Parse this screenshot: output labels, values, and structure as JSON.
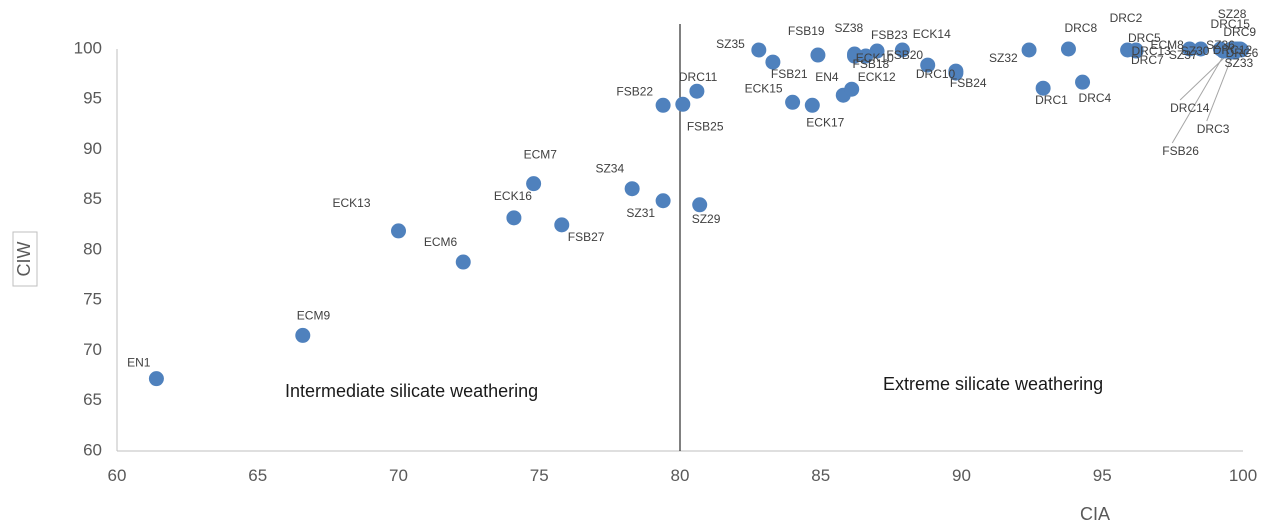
{
  "chart_data": {
    "type": "scatter",
    "xlabel": "CIA",
    "ylabel": "CIW",
    "xlim": [
      60,
      100
    ],
    "ylim": [
      60,
      100
    ],
    "xticks": [
      "60",
      "65",
      "70",
      "75",
      "80",
      "85",
      "90",
      "95",
      "100"
    ],
    "yticks": [
      "60",
      "65",
      "70",
      "75",
      "80",
      "85",
      "90",
      "95",
      "100"
    ],
    "grid": false,
    "legend": "none",
    "marker_color": "#4F81BD",
    "divider_x": 80,
    "regions": {
      "left": "Intermediate silicate weathering",
      "right": "Extreme silicate weathering"
    },
    "points": [
      {
        "label": "EN1",
        "x": 61.4,
        "y": 67.2
      },
      {
        "label": "ECM9",
        "x": 66.6,
        "y": 71.5
      },
      {
        "label": "ECK13",
        "x": 70.0,
        "y": 81.9
      },
      {
        "label": "ECM6",
        "x": 72.3,
        "y": 78.8
      },
      {
        "label": "ECK16",
        "x": 74.1,
        "y": 83.2
      },
      {
        "label": "ECM7",
        "x": 74.8,
        "y": 86.6
      },
      {
        "label": "FSB27",
        "x": 75.8,
        "y": 82.5
      },
      {
        "label": "SZ34",
        "x": 78.3,
        "y": 86.1
      },
      {
        "label": "SZ31",
        "x": 79.4,
        "y": 84.9
      },
      {
        "label": "FSB22",
        "x": 79.4,
        "y": 94.4
      },
      {
        "label": "FSB25",
        "x": 80.1,
        "y": 94.5
      },
      {
        "label": "DRC11",
        "x": 80.6,
        "y": 95.8
      },
      {
        "label": "SZ29",
        "x": 80.7,
        "y": 84.5
      },
      {
        "label": "SZ35",
        "x": 82.8,
        "y": 99.9
      },
      {
        "label": "FSB21",
        "x": 83.3,
        "y": 98.7
      },
      {
        "label": "ECK15",
        "x": 84.0,
        "y": 94.7
      },
      {
        "label": "ECK17",
        "x": 84.7,
        "y": 94.4
      },
      {
        "label": "FSB19",
        "x": 84.9,
        "y": 99.4
      },
      {
        "label": "EN4",
        "x": 85.8,
        "y": 95.4
      },
      {
        "label": "ECK12",
        "x": 86.1,
        "y": 96.0
      },
      {
        "label": "SZ38",
        "x": 86.2,
        "y": 99.5
      },
      {
        "label": "FSB18",
        "x": 86.2,
        "y": 99.3
      },
      {
        "label": "ECK10",
        "x": 86.6,
        "y": 99.3
      },
      {
        "label": "FSB23",
        "x": 87.0,
        "y": 99.8
      },
      {
        "label": "FSB20",
        "x": 87.9,
        "y": 99.9
      },
      {
        "label": "ECK14",
        "x": 88.8,
        "y": 98.4
      },
      {
        "label": "DRC10",
        "x": 89.8,
        "y": 97.8
      },
      {
        "label": "FSB24",
        "x": 89.8,
        "y": 97.6
      },
      {
        "label": "SZ32",
        "x": 92.4,
        "y": 99.9
      },
      {
        "label": "DRC1",
        "x": 92.9,
        "y": 96.1
      },
      {
        "label": "DRC8",
        "x": 93.8,
        "y": 100.0
      },
      {
        "label": "DRC4",
        "x": 94.3,
        "y": 96.7
      },
      {
        "label": "DRC2",
        "x": 95.9,
        "y": 99.9
      },
      {
        "label": "DRC5",
        "x": 96.2,
        "y": 99.9
      },
      {
        "label": "DRC7",
        "x": 96.2,
        "y": 99.8
      },
      {
        "label": "DRC13",
        "x": 98.1,
        "y": 100.0
      },
      {
        "label": "SZ30",
        "x": 98.5,
        "y": 100.0
      },
      {
        "label": "ECM8",
        "x": 99.2,
        "y": 100.0
      },
      {
        "label": "SZ28",
        "x": 99.6,
        "y": 100.0
      },
      {
        "label": "DRC15",
        "x": 99.7,
        "y": 100.0
      },
      {
        "label": "DRC9",
        "x": 99.8,
        "y": 100.0
      },
      {
        "label": "SZ36",
        "x": 99.9,
        "y": 100.0
      },
      {
        "label": "DRC12",
        "x": 99.85,
        "y": 99.9
      },
      {
        "label": "DRC6",
        "x": 99.95,
        "y": 99.9
      },
      {
        "label": "SZ37",
        "x": 99.5,
        "y": 99.8
      },
      {
        "label": "SZ33",
        "x": 99.7,
        "y": 99.7
      },
      {
        "label": "DRC14",
        "x": 99.4,
        "y": 99.8
      },
      {
        "label": "DRC3",
        "x": 99.6,
        "y": 99.7
      },
      {
        "label": "FSB26",
        "x": 99.3,
        "y": 99.8
      }
    ]
  }
}
